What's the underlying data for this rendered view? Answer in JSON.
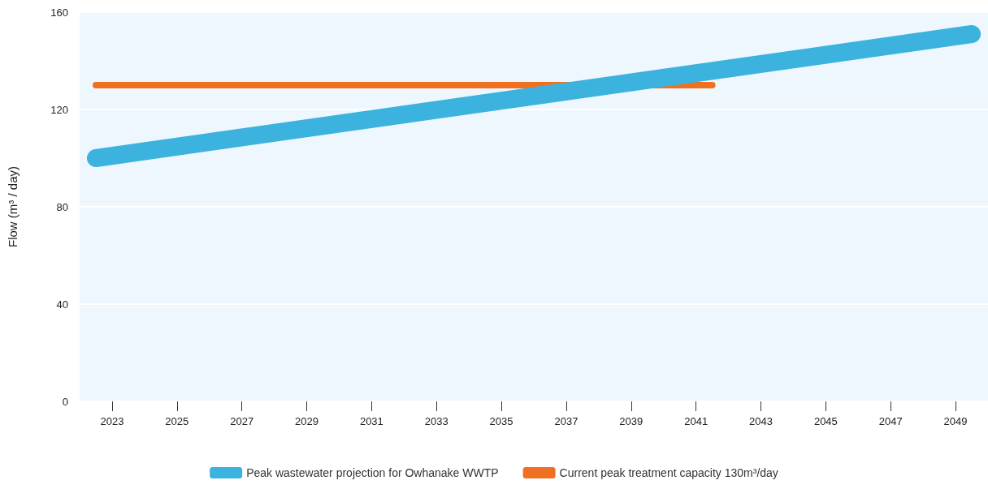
{
  "chart_data": {
    "type": "line",
    "ylabel": "Flow (m³ / day)",
    "xlim": [
      2022,
      2050
    ],
    "xticks": [
      2023,
      2025,
      2027,
      2029,
      2031,
      2033,
      2035,
      2037,
      2039,
      2041,
      2043,
      2045,
      2047,
      2049
    ],
    "ylim": [
      0,
      160
    ],
    "yticks": [
      0,
      40,
      80,
      120,
      160
    ],
    "series": [
      {
        "name": "Peak wastewater projection for Owhanake WWTP",
        "color": "#3bb3de",
        "x": [
          2022.5,
          2049.5
        ],
        "values": [
          100,
          151
        ]
      },
      {
        "name": "Current peak treatment capacity 130m³/day",
        "color": "#f07022",
        "x": [
          2022.5,
          2041.5
        ],
        "values": [
          130,
          130
        ]
      }
    ],
    "grid": "y",
    "legend": "bottom",
    "line_style": "solid"
  }
}
